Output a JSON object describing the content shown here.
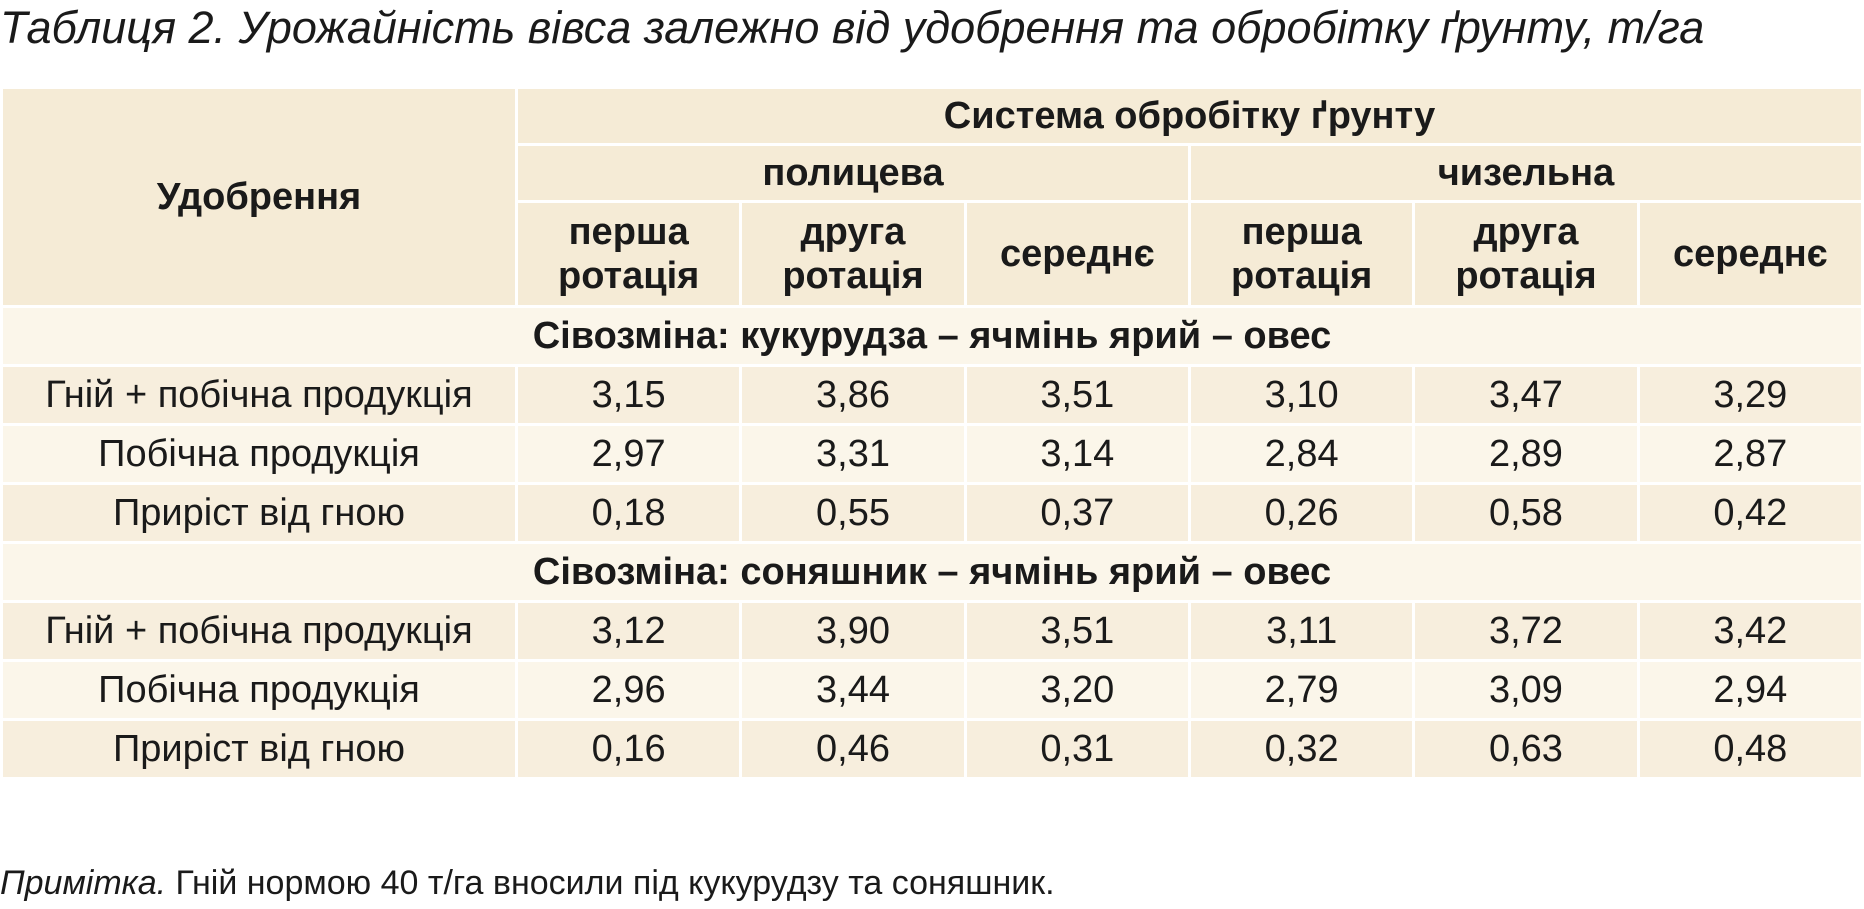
{
  "title": "Таблиця 2. Урожайність вівса залежно від удобрення та обробітку ґрунту, т/га",
  "table": {
    "header": {
      "fertilizer": "Удобрення",
      "system": "Система обробітку ґрунту",
      "groups": [
        {
          "name": "полицева",
          "columns": [
            "перша ротація",
            "друга ротація",
            "середнє"
          ]
        },
        {
          "name": "чизельна",
          "columns": [
            "перша ротація",
            "друга ротація",
            "середнє"
          ]
        }
      ]
    },
    "sections": [
      {
        "label": "Сівозміна: кукурудза – ячмінь ярий – овес",
        "rows": [
          [
            "Гній + побічна продукція",
            "3,15",
            "3,86",
            "3,51",
            "3,10",
            "3,47",
            "3,29"
          ],
          [
            "Побічна продукція",
            "2,97",
            "3,31",
            "3,14",
            "2,84",
            "2,89",
            "2,87"
          ],
          [
            "Приріст від гною",
            "0,18",
            "0,55",
            "0,37",
            "0,26",
            "0,58",
            "0,42"
          ]
        ]
      },
      {
        "label": "Сівозміна: соняшник – ячмінь ярий – овес",
        "rows": [
          [
            "Гній + побічна продукція",
            "3,12",
            "3,90",
            "3,51",
            "3,11",
            "3,72",
            "3,42"
          ],
          [
            "Побічна продукція",
            "2,96",
            "3,44",
            "3,20",
            "2,79",
            "3,09",
            "2,94"
          ],
          [
            "Приріст від гною",
            "0,16",
            "0,46",
            "0,31",
            "0,32",
            "0,63",
            "0,48"
          ]
        ]
      }
    ]
  },
  "note": {
    "label": "Примітка.",
    "text": " Гній нормою 40 т/га вносили під кукурудзу та соняшник."
  }
}
